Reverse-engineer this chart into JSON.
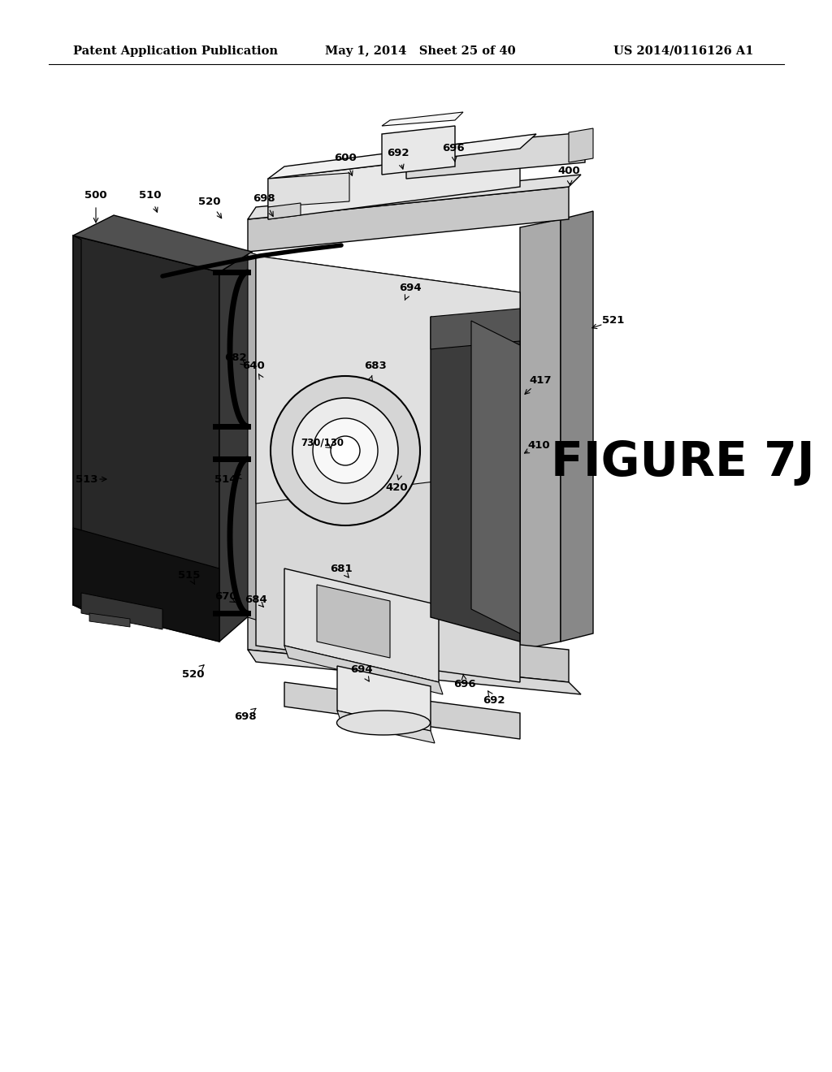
{
  "bg_color": "#ffffff",
  "header_left": "Patent Application Publication",
  "header_mid": "May 1, 2014   Sheet 25 of 40",
  "header_right": "US 2014/0116126 A1",
  "figure_label": "FIGURE 7J",
  "header_fontsize": 10.5,
  "figure_fontsize": 42,
  "dark_box_color": "#2a2a2a",
  "dark_box_top_color": "#555555",
  "dark_box_side_color": "#444444",
  "dark_box_bottom_color": "#111111",
  "frame_outer_color": "#b8b8b8",
  "frame_inner_color": "#888888",
  "inner_body_color": "#d0d0d0",
  "inner_light_color": "#e8e8e8",
  "dark_inner_color": "#3a3a3a",
  "medium_gray": "#909090",
  "light_gray": "#c8c8c8",
  "very_light_gray": "#e0e0e0",
  "white_ish": "#f0f0f0"
}
